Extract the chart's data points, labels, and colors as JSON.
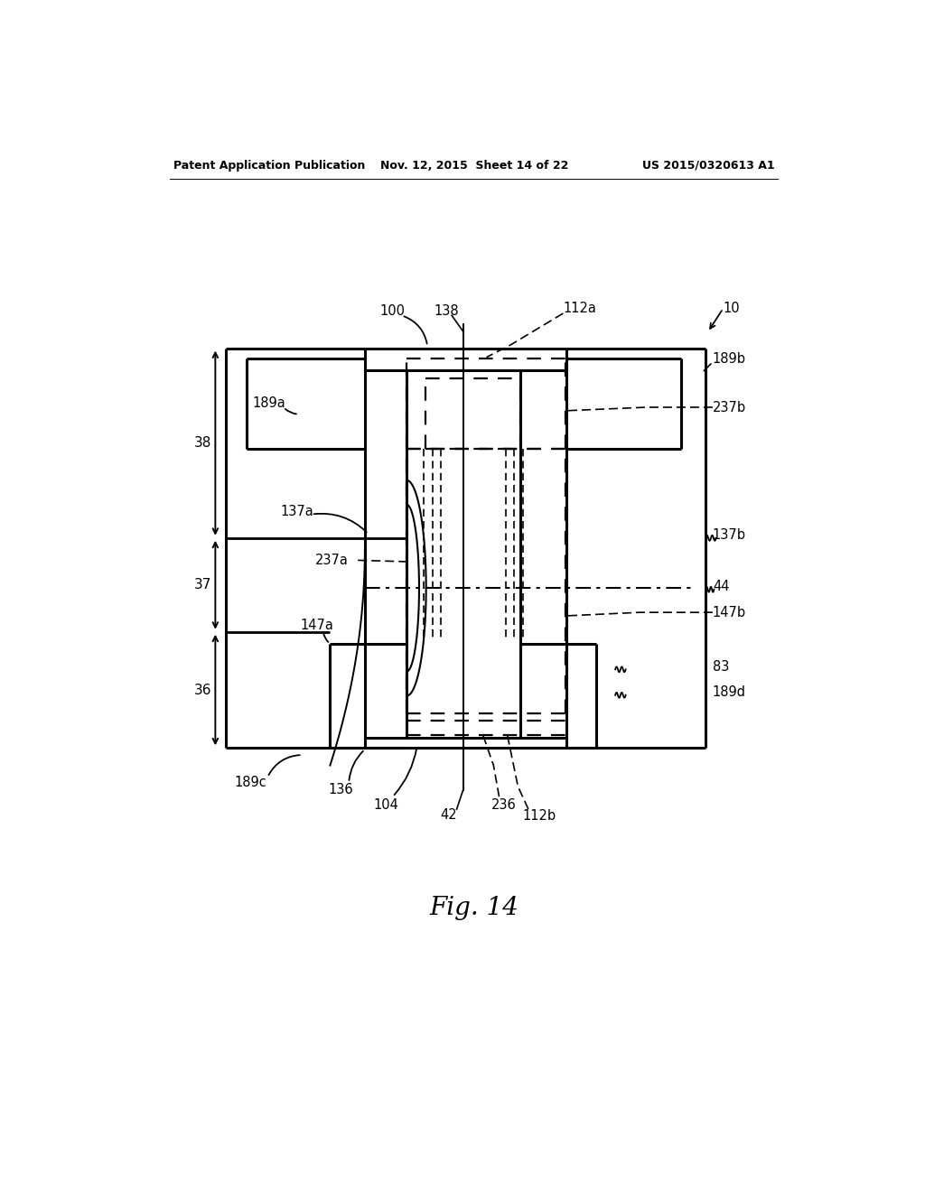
{
  "header_left": "Patent Application Publication",
  "header_mid": "Nov. 12, 2015  Sheet 14 of 22",
  "header_right": "US 2015/0320613 A1",
  "fig_label": "Fig. 14",
  "bg_color": "#ffffff"
}
